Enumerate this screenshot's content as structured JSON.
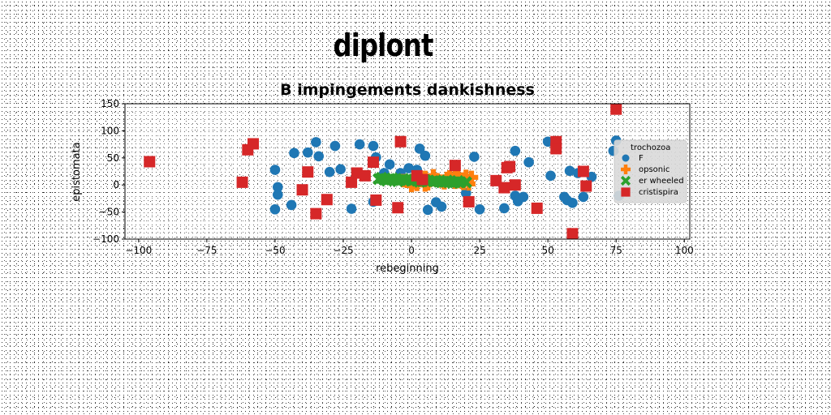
{
  "figure": {
    "suptitle": "diplont"
  },
  "chart_data": {
    "type": "scatter",
    "title": "B impingements dankishness",
    "xlabel": "rebeginning",
    "ylabel": "epistomata",
    "xlim": [
      -105,
      102
    ],
    "ylim": [
      -100,
      150
    ],
    "xticks": [
      -100,
      -75,
      -50,
      -25,
      0,
      25,
      50,
      75,
      100
    ],
    "yticks": [
      -100,
      -50,
      0,
      50,
      100,
      150
    ],
    "xtick_labels": [
      "−100",
      "−75",
      "−50",
      "−25",
      "0",
      "25",
      "50",
      "75",
      "100"
    ],
    "ytick_labels": [
      "−100",
      "−50",
      "0",
      "50",
      "100",
      "150"
    ],
    "grid": false,
    "legend": {
      "title": "trochozoa",
      "placement": "right"
    },
    "series": [
      {
        "name": "F",
        "marker": "circle",
        "color": "#1f77b4",
        "points": [
          [
            -50,
            -45
          ],
          [
            -49,
            -18
          ],
          [
            -49,
            -4
          ],
          [
            -50,
            28
          ],
          [
            -44,
            -37
          ],
          [
            -43,
            59
          ],
          [
            -38,
            60
          ],
          [
            -35,
            79
          ],
          [
            -34,
            53
          ],
          [
            -30,
            24
          ],
          [
            -28,
            72
          ],
          [
            -26,
            29
          ],
          [
            -22,
            -44
          ],
          [
            -19,
            75
          ],
          [
            -14,
            72
          ],
          [
            -14,
            -31
          ],
          [
            -13,
            51
          ],
          [
            -10,
            22
          ],
          [
            -8,
            38
          ],
          [
            -4,
            22
          ],
          [
            -1,
            31
          ],
          [
            2,
            28
          ],
          [
            3,
            67
          ],
          [
            5,
            54
          ],
          [
            6,
            -46
          ],
          [
            9,
            -32
          ],
          [
            11,
            -40
          ],
          [
            20,
            -15
          ],
          [
            23,
            52
          ],
          [
            25,
            -45
          ],
          [
            34,
            -43
          ],
          [
            38,
            -20
          ],
          [
            38,
            63
          ],
          [
            39,
            -30
          ],
          [
            41,
            -22
          ],
          [
            43,
            42
          ],
          [
            50,
            80
          ],
          [
            51,
            17
          ],
          [
            56,
            -22
          ],
          [
            57,
            -28
          ],
          [
            58,
            26
          ],
          [
            59,
            -33
          ],
          [
            63,
            -22
          ],
          [
            66,
            15
          ],
          [
            74,
            63
          ],
          [
            75,
            82
          ],
          [
            76,
            -20
          ],
          [
            61,
            22
          ]
        ]
      },
      {
        "name": "opsonic",
        "marker": "plus",
        "color": "#ff7f0e",
        "points": [
          [
            -3,
            8
          ],
          [
            0,
            -1
          ],
          [
            1,
            4
          ],
          [
            4,
            9
          ],
          [
            5,
            14
          ],
          [
            6,
            2
          ],
          [
            8,
            17
          ],
          [
            9,
            10
          ],
          [
            11,
            7
          ],
          [
            12,
            4
          ],
          [
            13,
            12
          ],
          [
            14,
            15
          ],
          [
            15,
            8
          ],
          [
            16,
            5
          ],
          [
            17,
            14
          ],
          [
            18,
            6
          ],
          [
            19,
            11
          ],
          [
            20,
            16
          ],
          [
            21,
            2
          ],
          [
            22,
            14
          ],
          [
            2,
            1
          ],
          [
            5,
            0
          ],
          [
            16,
            18
          ],
          [
            19,
            3
          ]
        ]
      },
      {
        "name": "er wheeled",
        "marker": "x",
        "color": "#2ca02c",
        "points": [
          [
            -12,
            11
          ],
          [
            -10,
            10
          ],
          [
            -8,
            11
          ],
          [
            -6,
            10
          ],
          [
            -4,
            9
          ],
          [
            -2,
            9
          ],
          [
            0,
            8
          ],
          [
            2,
            8
          ],
          [
            4,
            7
          ],
          [
            6,
            7
          ],
          [
            8,
            7
          ],
          [
            10,
            6
          ],
          [
            12,
            6
          ],
          [
            14,
            6
          ],
          [
            16,
            5
          ],
          [
            18,
            5
          ],
          [
            20,
            5
          ],
          [
            -11,
            13
          ],
          [
            -7,
            12
          ],
          [
            -3,
            11
          ],
          [
            1,
            10
          ],
          [
            5,
            9
          ],
          [
            9,
            8
          ],
          [
            13,
            8
          ],
          [
            17,
            7
          ],
          [
            -9,
            8
          ],
          [
            -5,
            7
          ],
          [
            3,
            6
          ],
          [
            11,
            5
          ],
          [
            15,
            4
          ]
        ]
      },
      {
        "name": "cristispira",
        "marker": "square",
        "color": "#d62728",
        "points": [
          [
            -96,
            43
          ],
          [
            -62,
            5
          ],
          [
            -60,
            65
          ],
          [
            -58,
            76
          ],
          [
            -40,
            -9
          ],
          [
            -38,
            24
          ],
          [
            -35,
            -53
          ],
          [
            -31,
            -27
          ],
          [
            -22,
            5
          ],
          [
            -20,
            22
          ],
          [
            -17,
            17
          ],
          [
            -14,
            42
          ],
          [
            -13,
            -28
          ],
          [
            -5,
            -42
          ],
          [
            -4,
            80
          ],
          [
            2,
            17
          ],
          [
            4,
            10
          ],
          [
            16,
            36
          ],
          [
            21,
            -31
          ],
          [
            31,
            8
          ],
          [
            34,
            -5
          ],
          [
            35,
            32
          ],
          [
            36,
            34
          ],
          [
            38,
            0
          ],
          [
            46,
            -43
          ],
          [
            53,
            80
          ],
          [
            53,
            67
          ],
          [
            59,
            -90
          ],
          [
            63,
            25
          ],
          [
            64,
            -2
          ],
          [
            75,
            140
          ]
        ]
      }
    ]
  }
}
